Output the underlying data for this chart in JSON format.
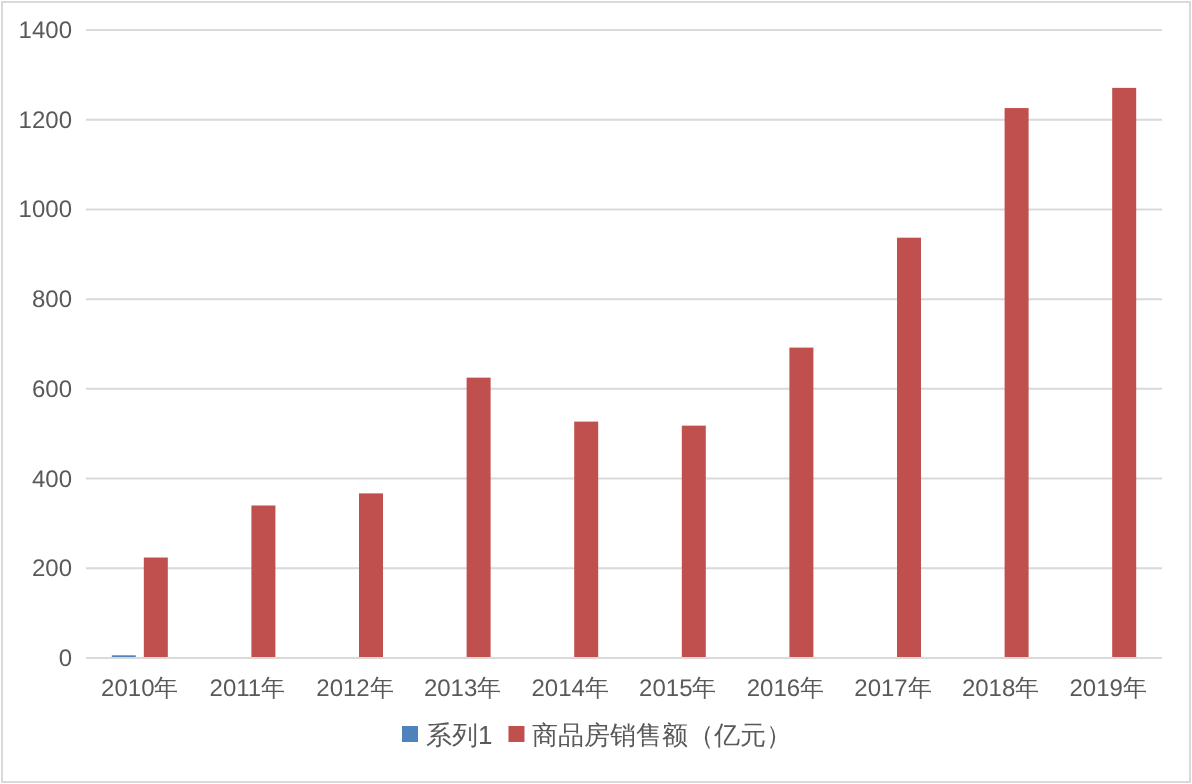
{
  "chart_data": {
    "type": "bar",
    "categories": [
      "2010年",
      "2011年",
      "2012年",
      "2013年",
      "2014年",
      "2015年",
      "2016年",
      "2017年",
      "2018年",
      "2019年"
    ],
    "series": [
      {
        "name": "系列1",
        "color": "#4f81bd",
        "values": [
          6,
          null,
          null,
          null,
          null,
          null,
          null,
          null,
          null,
          null
        ]
      },
      {
        "name": "商品房销售额（亿元）",
        "color": "#c0504d",
        "values": [
          224,
          340,
          367,
          625,
          527,
          518,
          692,
          937,
          1226,
          1271
        ]
      }
    ],
    "ylim": [
      0,
      1400
    ],
    "yticks": [
      0,
      200,
      400,
      600,
      800,
      1000,
      1200,
      1400
    ],
    "grid": "y",
    "legend": "bottom"
  }
}
